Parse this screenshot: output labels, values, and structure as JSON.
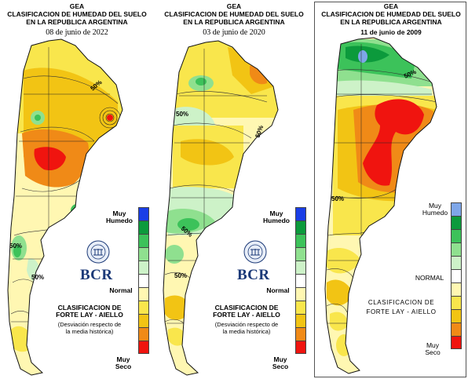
{
  "colors": {
    "muy_humedo_blue": "#1a3ee6",
    "dark_green": "#0c9a3c",
    "green": "#3cc25a",
    "light_green": "#8fe08f",
    "pale_green": "#cdf2c8",
    "normal_white": "#ffffff",
    "pale_yellow": "#fff7b2",
    "yellow": "#f9e64c",
    "gold": "#f2c414",
    "orange": "#f08a17",
    "red": "#f0140f",
    "light_blue_2009": "#7ea6e8"
  },
  "panels": [
    {
      "title1": "GEA",
      "title2": "CLASIFICACION DE HUMEDAD DEL SUELO",
      "title3": "EN LA REPUBLICA ARGENTINA",
      "date": "08 de junio de 2022",
      "scale_top": "Muy\nHumedo",
      "normal": "Normal",
      "method": "CLASIFICACION DE\nFORTE LAY - AIELLO",
      "note": "(Desviación respecto de\nla media histórica)",
      "scale_bottom": "Muy\nSeco",
      "logo": "BCR",
      "contour_labels": [
        "50%",
        "50%",
        "50%"
      ]
    },
    {
      "title1": "GEA",
      "title2": "CLASIFICACION DE HUMEDAD DEL SUELO",
      "title3": "EN LA REPUBLICA ARGENTINA",
      "date": "03 de junio de 2020",
      "scale_top": "Muy\nHumedo",
      "normal": "Normal",
      "method": "CLASIFICACION DE\nFORTE LAY - AIELLO",
      "note": "(Desviación respecto de\nla media histórica)",
      "scale_bottom": "Muy\nSeco",
      "logo": "BCR",
      "contour_labels": [
        "50%",
        "50%",
        "50%",
        "50%"
      ]
    },
    {
      "title1": "GEA",
      "title2": "CLASIFICACION DE HUMEDAD DEL SUELO",
      "title3": "EN LA REPUBLICA ARGENTINA",
      "date": "11 de junio de 2009",
      "scale_top": "Muy\nHumedo",
      "normal": "NORMAL",
      "method": "CLASIFICACION DE\nFORTE LAY - AIELLO",
      "scale_bottom": "Muy\nSeco",
      "contour_labels": [
        "50%",
        "50%"
      ]
    }
  ]
}
